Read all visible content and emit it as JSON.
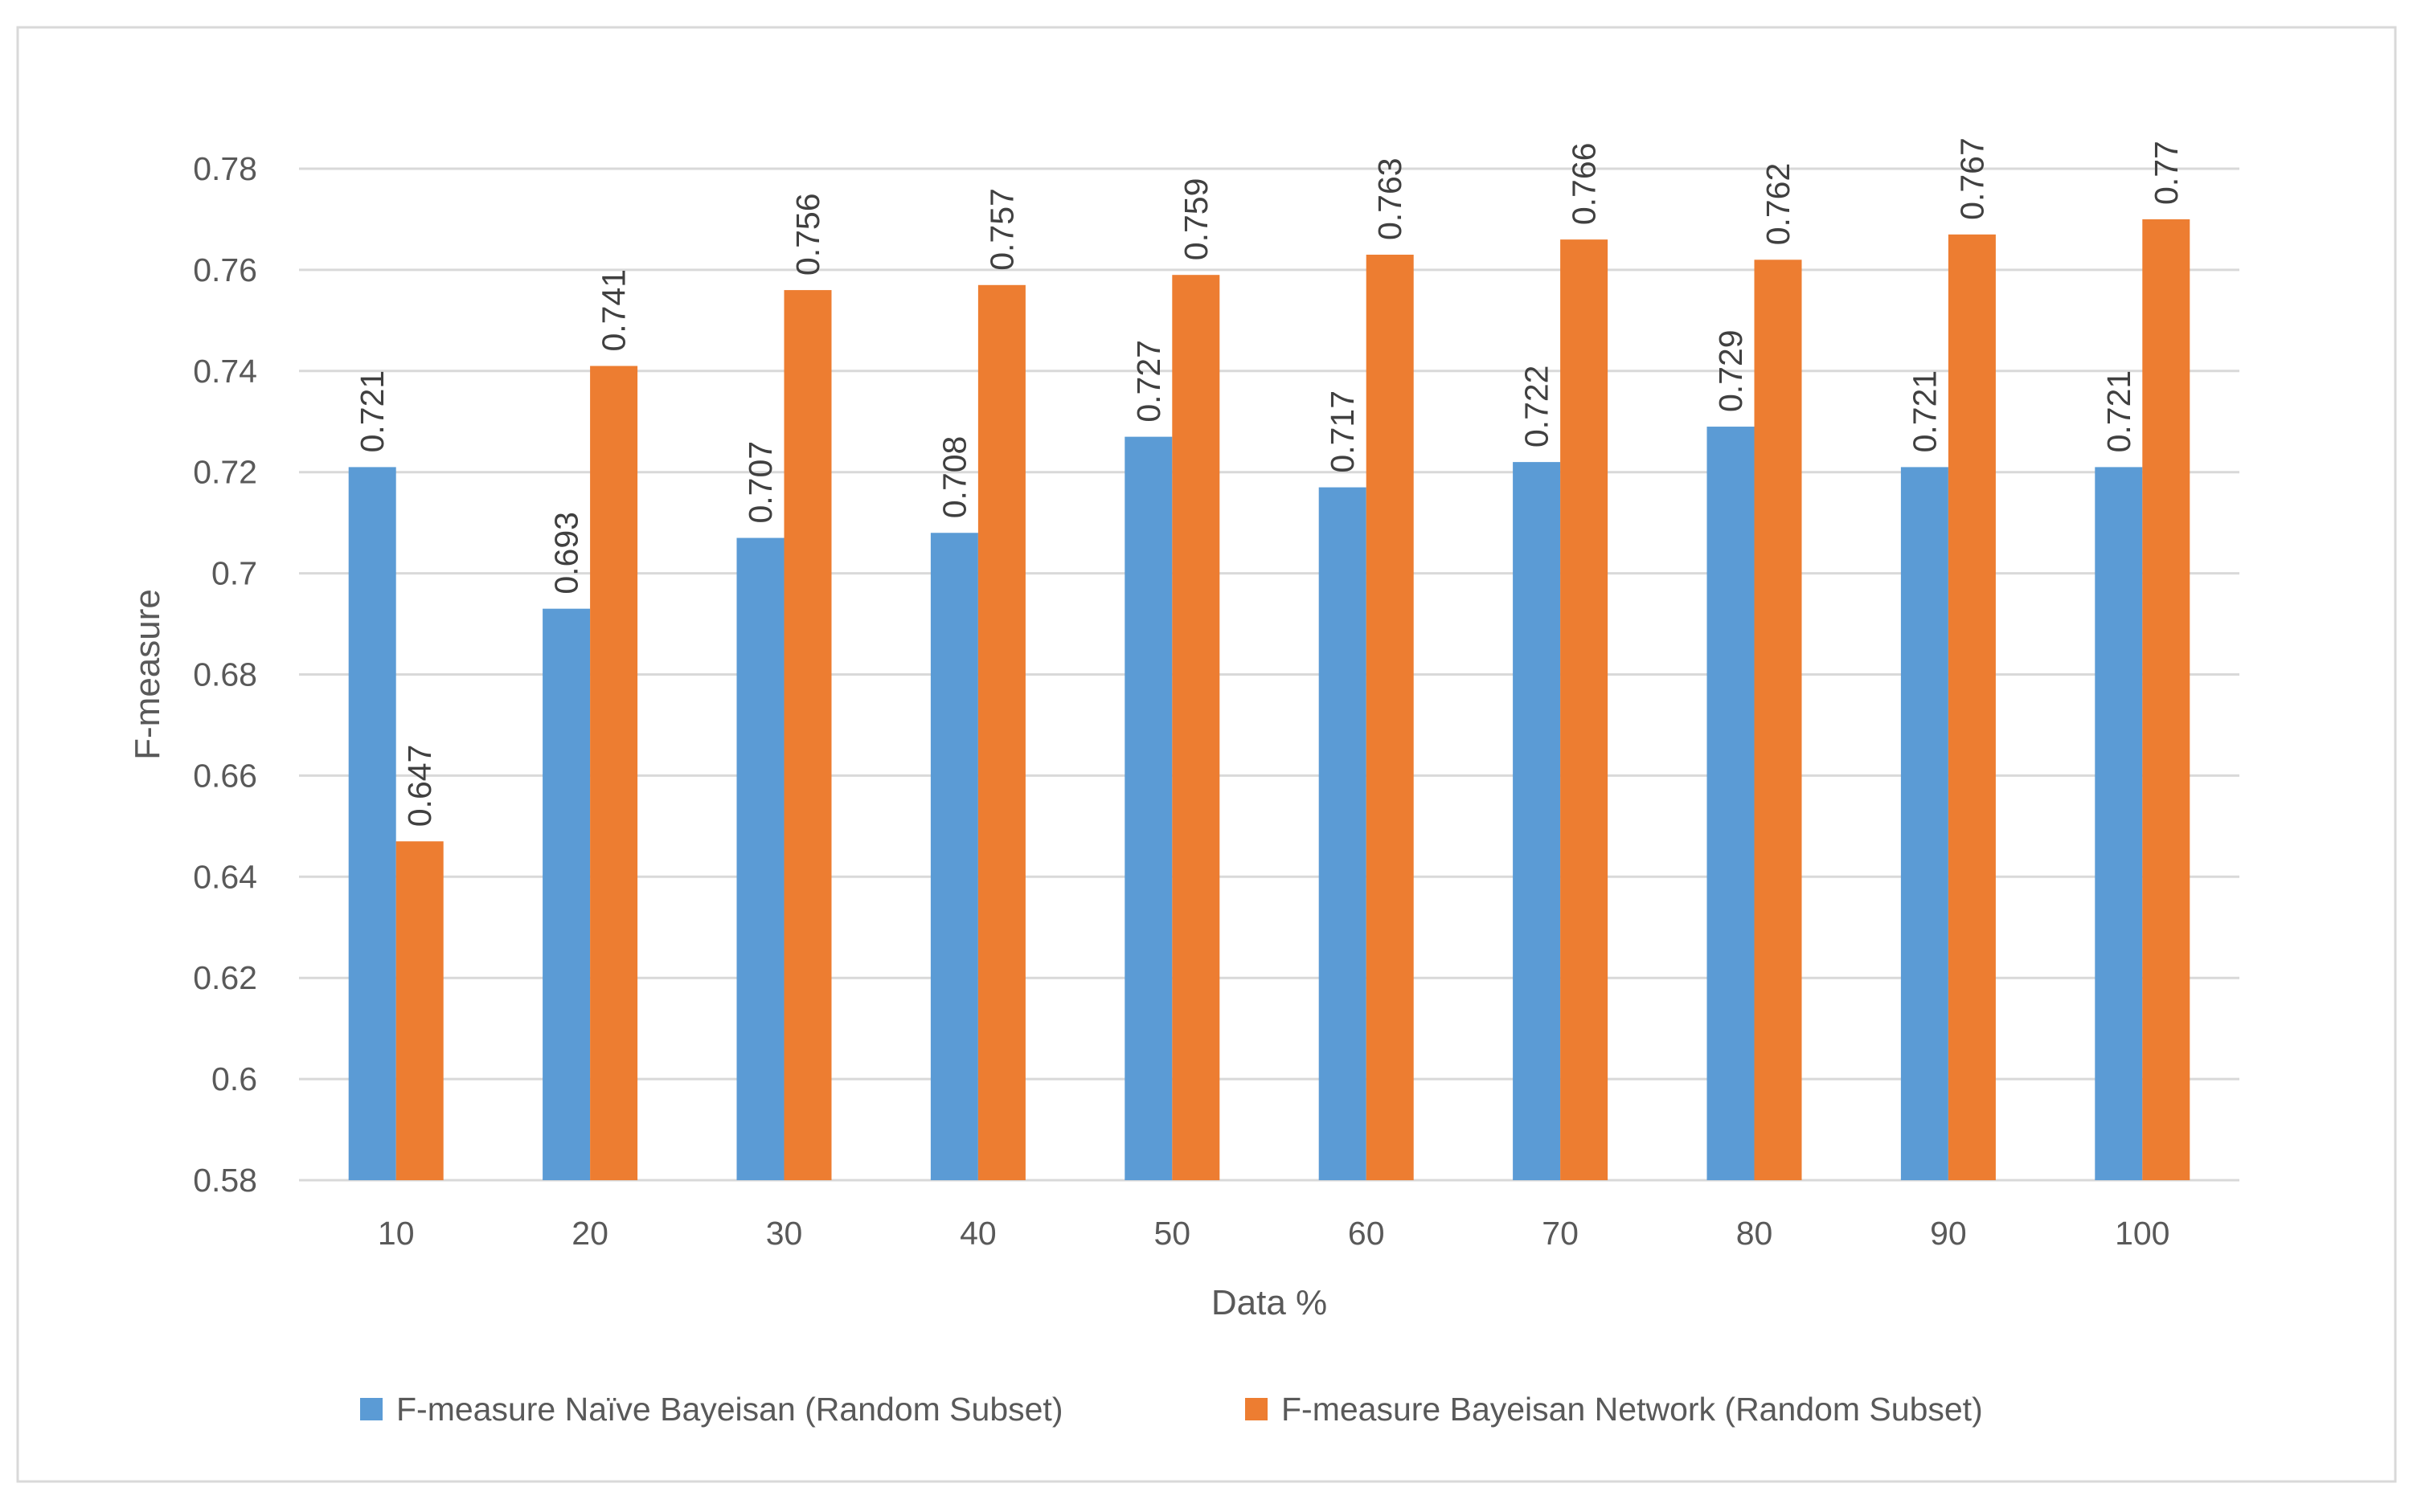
{
  "chart_data": {
    "type": "bar",
    "title": "",
    "xlabel": "Data %",
    "ylabel": "F-measure",
    "ylim": [
      0.58,
      0.78
    ],
    "yticks": [
      0.58,
      0.6,
      0.62,
      0.64,
      0.66,
      0.68,
      0.7,
      0.72,
      0.74,
      0.76,
      0.78
    ],
    "ytick_labels": [
      "0.58",
      "0.6",
      "0.62",
      "0.64",
      "0.66",
      "0.68",
      "0.7",
      "0.72",
      "0.74",
      "0.76",
      "0.78"
    ],
    "grid": true,
    "legend_position": "bottom",
    "categories": [
      "10",
      "20",
      "30",
      "40",
      "50",
      "60",
      "70",
      "80",
      "90",
      "100"
    ],
    "series": [
      {
        "name": "F-measure Naïve Bayeisan (Random Subset)",
        "color": "#5B9BD5",
        "values": [
          0.721,
          0.693,
          0.707,
          0.708,
          0.727,
          0.717,
          0.722,
          0.729,
          0.721,
          0.721
        ],
        "labels": [
          "0.721",
          "0.693",
          "0.707",
          "0.708",
          "0.727",
          "0.717",
          "0.722",
          "0.729",
          "0.721",
          "0.721"
        ]
      },
      {
        "name": "F-measure Bayeisan Network (Random Subset)",
        "color": "#ED7D31",
        "values": [
          0.647,
          0.741,
          0.756,
          0.757,
          0.759,
          0.763,
          0.766,
          0.762,
          0.767,
          0.77
        ],
        "labels": [
          "0.647",
          "0.741",
          "0.756",
          "0.757",
          "0.759",
          "0.763",
          "0.766",
          "0.762",
          "0.767",
          "0.77"
        ]
      }
    ]
  },
  "colors": {
    "grid": "#D9D9D9",
    "frame": "#D9D9D9",
    "axis_text": "#595959",
    "label_text": "#404040"
  }
}
